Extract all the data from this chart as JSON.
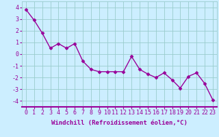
{
  "x": [
    0,
    1,
    2,
    3,
    4,
    5,
    6,
    7,
    8,
    9,
    10,
    11,
    12,
    13,
    14,
    15,
    16,
    17,
    18,
    19,
    20,
    21,
    22,
    23
  ],
  "y": [
    3.8,
    2.9,
    1.8,
    0.5,
    0.9,
    0.5,
    0.9,
    -0.6,
    -1.3,
    -1.5,
    -1.5,
    -1.5,
    -1.5,
    -0.2,
    -1.3,
    -1.7,
    -2.0,
    -1.6,
    -2.2,
    -2.9,
    -1.9,
    -1.6,
    -2.5,
    -3.9
  ],
  "line_color": "#990099",
  "marker": "D",
  "markersize": 2.5,
  "linewidth": 1.0,
  "background_color": "#cceeff",
  "grid_color": "#99cccc",
  "xlabel": "Windchill (Refroidissement éolien,°C)",
  "xlabel_color": "#990099",
  "xlabel_fontsize": 6.5,
  "tick_color": "#990099",
  "tick_fontsize": 6.0,
  "ylim": [
    -4.5,
    4.5
  ],
  "yticks": [
    -4,
    -3,
    -2,
    -1,
    0,
    1,
    2,
    3,
    4
  ],
  "xlim": [
    -0.5,
    23.5
  ],
  "xticks": [
    0,
    1,
    2,
    3,
    4,
    5,
    6,
    7,
    8,
    9,
    10,
    11,
    12,
    13,
    14,
    15,
    16,
    17,
    18,
    19,
    20,
    21,
    22,
    23
  ],
  "spine_color": "#990099",
  "bottom_spine_linewidth": 1.5
}
